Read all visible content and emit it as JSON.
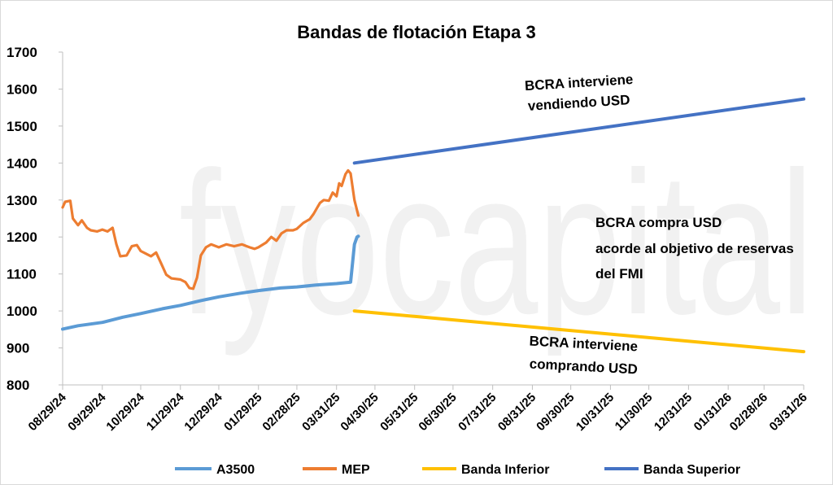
{
  "chart_data": {
    "type": "line",
    "title": "Bandas de flotación Etapa 3",
    "watermark": "fyocapital",
    "ylim": [
      800,
      1700
    ],
    "yticks": [
      "1700",
      "1600",
      "1500",
      "1400",
      "1300",
      "1200",
      "1100",
      "1000",
      "900",
      "800"
    ],
    "xticks": [
      "08/29/24",
      "09/29/24",
      "10/29/24",
      "11/29/24",
      "12/29/24",
      "01/29/25",
      "02/28/25",
      "03/31/25",
      "04/30/25",
      "05/31/25",
      "06/30/25",
      "07/31/25",
      "08/31/25",
      "09/30/25",
      "10/31/25",
      "11/30/25",
      "12/31/25",
      "01/31/26",
      "02/28/26",
      "03/31/26"
    ],
    "grid": false,
    "legend_position": "bottom",
    "series": [
      {
        "name": "A3500",
        "color": "#5b9bd5",
        "points": [
          [
            "08/29/24",
            951
          ],
          [
            "09/10/24",
            960
          ],
          [
            "09/29/24",
            969
          ],
          [
            "10/15/24",
            983
          ],
          [
            "10/29/24",
            993
          ],
          [
            "11/15/24",
            1006
          ],
          [
            "11/29/24",
            1015
          ],
          [
            "12/15/24",
            1028
          ],
          [
            "12/29/24",
            1038
          ],
          [
            "01/15/25",
            1048
          ],
          [
            "01/29/25",
            1055
          ],
          [
            "02/15/25",
            1062
          ],
          [
            "02/28/25",
            1065
          ],
          [
            "03/15/25",
            1070
          ],
          [
            "03/31/25",
            1074
          ],
          [
            "04/11/25",
            1078
          ],
          [
            "04/14/25",
            1180
          ],
          [
            "04/16/25",
            1200
          ],
          [
            "04/17/25",
            1202
          ]
        ]
      },
      {
        "name": "MEP",
        "color": "#ed7d31",
        "points": [
          [
            "08/29/24",
            1280
          ],
          [
            "08/31/24",
            1295
          ],
          [
            "09/04/24",
            1298
          ],
          [
            "09/06/24",
            1250
          ],
          [
            "09/10/24",
            1232
          ],
          [
            "09/13/24",
            1245
          ],
          [
            "09/17/24",
            1225
          ],
          [
            "09/20/24",
            1218
          ],
          [
            "09/25/24",
            1215
          ],
          [
            "09/29/24",
            1220
          ],
          [
            "10/03/24",
            1215
          ],
          [
            "10/07/24",
            1225
          ],
          [
            "10/10/24",
            1180
          ],
          [
            "10/13/24",
            1148
          ],
          [
            "10/18/24",
            1150
          ],
          [
            "10/22/24",
            1175
          ],
          [
            "10/26/24",
            1178
          ],
          [
            "10/29/24",
            1162
          ],
          [
            "11/02/24",
            1155
          ],
          [
            "11/06/24",
            1148
          ],
          [
            "11/10/24",
            1158
          ],
          [
            "11/14/24",
            1128
          ],
          [
            "11/18/24",
            1098
          ],
          [
            "11/22/24",
            1088
          ],
          [
            "11/29/24",
            1085
          ],
          [
            "12/03/24",
            1078
          ],
          [
            "12/06/24",
            1062
          ],
          [
            "12/09/24",
            1060
          ],
          [
            "12/12/24",
            1090
          ],
          [
            "12/15/24",
            1150
          ],
          [
            "12/19/24",
            1172
          ],
          [
            "12/23/24",
            1180
          ],
          [
            "12/29/24",
            1172
          ],
          [
            "01/04/25",
            1180
          ],
          [
            "01/10/25",
            1175
          ],
          [
            "01/16/25",
            1180
          ],
          [
            "01/22/25",
            1172
          ],
          [
            "01/26/25",
            1168
          ],
          [
            "01/29/25",
            1172
          ],
          [
            "02/04/25",
            1185
          ],
          [
            "02/08/25",
            1200
          ],
          [
            "02/12/25",
            1190
          ],
          [
            "02/16/25",
            1210
          ],
          [
            "02/20/25",
            1218
          ],
          [
            "02/25/25",
            1218
          ],
          [
            "02/28/25",
            1222
          ],
          [
            "03/05/25",
            1238
          ],
          [
            "03/10/25",
            1248
          ],
          [
            "03/13/25",
            1262
          ],
          [
            "03/18/25",
            1292
          ],
          [
            "03/21/25",
            1300
          ],
          [
            "03/25/25",
            1298
          ],
          [
            "03/28/25",
            1320
          ],
          [
            "03/31/25",
            1310
          ],
          [
            "04/02/25",
            1345
          ],
          [
            "04/04/25",
            1338
          ],
          [
            "04/07/25",
            1370
          ],
          [
            "04/09/25",
            1380
          ],
          [
            "04/11/25",
            1372
          ],
          [
            "04/14/25",
            1300
          ],
          [
            "04/17/25",
            1258
          ]
        ]
      },
      {
        "name": "Banda Inferior",
        "color": "#ffc000",
        "points": [
          [
            "04/14/25",
            1000
          ],
          [
            "03/31/26",
            890
          ]
        ]
      },
      {
        "name": "Banda Superior",
        "color": "#4472c4",
        "points": [
          [
            "04/14/25",
            1400
          ],
          [
            "03/31/26",
            1573
          ]
        ]
      }
    ],
    "annotations": [
      {
        "lines": [
          "BCRA interviene",
          "vendiendo USD"
        ],
        "align": "middle"
      },
      {
        "lines": [
          "BCRA compra USD",
          "acorde al objetivo de reservas",
          "del FMI"
        ],
        "align": "start"
      },
      {
        "lines": [
          "BCRA interviene",
          "comprando USD"
        ],
        "align": "middle"
      }
    ]
  }
}
